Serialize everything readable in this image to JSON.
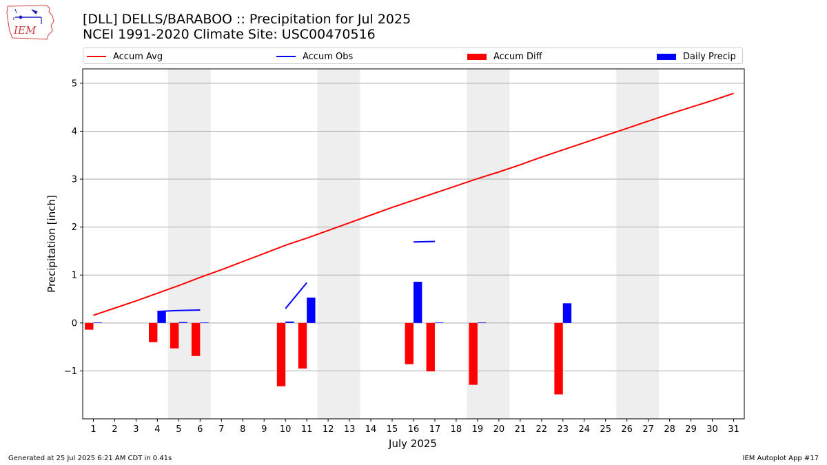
{
  "header": {
    "logo_text": "IEM",
    "title_line1": "[DLL] DELLS/BARABOO :: Precipitation for Jul 2025",
    "title_line2": "NCEI 1991-2020 Climate Site: USC00470516"
  },
  "footer": {
    "generated": "Generated at 25 Jul 2025 6:21 AM CDT in 0.41s",
    "app": "IEM Autoplot App #17"
  },
  "colors": {
    "accum_avg": "#ff0000",
    "accum_obs": "#0000ff",
    "accum_diff": "#ff0000",
    "daily_precip": "#0000ff",
    "weekend_band": "#eeeeee",
    "grid": "#aaaaaa"
  },
  "chart_data": {
    "type": "bar",
    "title": "[DLL] DELLS/BARABOO :: Precipitation for Jul 2025",
    "subtitle": "NCEI 1991-2020 Climate Site: USC00470516",
    "xlabel": "July 2025",
    "ylabel": "Precipitation [inch]",
    "xlim": [
      0.5,
      31.5
    ],
    "ylim": [
      -2.0,
      5.3
    ],
    "yticks": [
      -1,
      0,
      1,
      2,
      3,
      4,
      5
    ],
    "ytick_labels": [
      "−1",
      "0",
      "1",
      "2",
      "3",
      "4",
      "5"
    ],
    "xticks": [
      1,
      2,
      3,
      4,
      5,
      6,
      7,
      8,
      9,
      10,
      11,
      12,
      13,
      14,
      15,
      16,
      17,
      18,
      19,
      20,
      21,
      22,
      23,
      24,
      25,
      26,
      27,
      28,
      29,
      30,
      31
    ],
    "grid": "horizontal",
    "legend_position": "top",
    "weekend_bands": [
      [
        4.5,
        6.5
      ],
      [
        11.5,
        13.5
      ],
      [
        18.5,
        20.5
      ],
      [
        25.5,
        27.5
      ]
    ],
    "series": [
      {
        "name": "Accum Avg",
        "kind": "line",
        "x": [
          1,
          2,
          3,
          4,
          5,
          6,
          7,
          8,
          9,
          10,
          11,
          12,
          13,
          14,
          15,
          16,
          17,
          18,
          19,
          20,
          21,
          22,
          23,
          24,
          25,
          26,
          27,
          28,
          29,
          30,
          31
        ],
        "values": [
          0.16,
          0.31,
          0.46,
          0.62,
          0.78,
          0.95,
          1.11,
          1.28,
          1.45,
          1.62,
          1.77,
          1.93,
          2.09,
          2.25,
          2.41,
          2.56,
          2.71,
          2.86,
          3.01,
          3.15,
          3.3,
          3.46,
          3.61,
          3.76,
          3.91,
          4.06,
          4.21,
          4.36,
          4.5,
          4.64,
          4.79
        ]
      },
      {
        "name": "Accum Obs",
        "kind": "line_segments",
        "segments": [
          {
            "x": [
              4,
              5,
              6
            ],
            "values": [
              0.24,
              0.26,
              0.27
            ]
          },
          {
            "x": [
              10,
              11
            ],
            "values": [
              0.3,
              0.84
            ]
          },
          {
            "x": [
              16,
              17
            ],
            "values": [
              1.69,
              1.7
            ]
          }
        ]
      },
      {
        "name": "Accum Diff",
        "kind": "bar",
        "offset": -0.2,
        "x": [
          1,
          4,
          5,
          6,
          10,
          11,
          16,
          17,
          19,
          23
        ],
        "values": [
          -0.14,
          -0.4,
          -0.53,
          -0.69,
          -1.32,
          -0.95,
          -0.86,
          -1.01,
          -1.29,
          -1.49
        ]
      },
      {
        "name": "Daily Precip",
        "kind": "bar",
        "offset": 0.2,
        "x": [
          1,
          4,
          5,
          6,
          10,
          11,
          16,
          17,
          19,
          23
        ],
        "values": [
          0.01,
          0.24,
          0.02,
          0.01,
          0.03,
          0.53,
          0.86,
          0.01,
          0.01,
          0.41
        ]
      }
    ]
  }
}
